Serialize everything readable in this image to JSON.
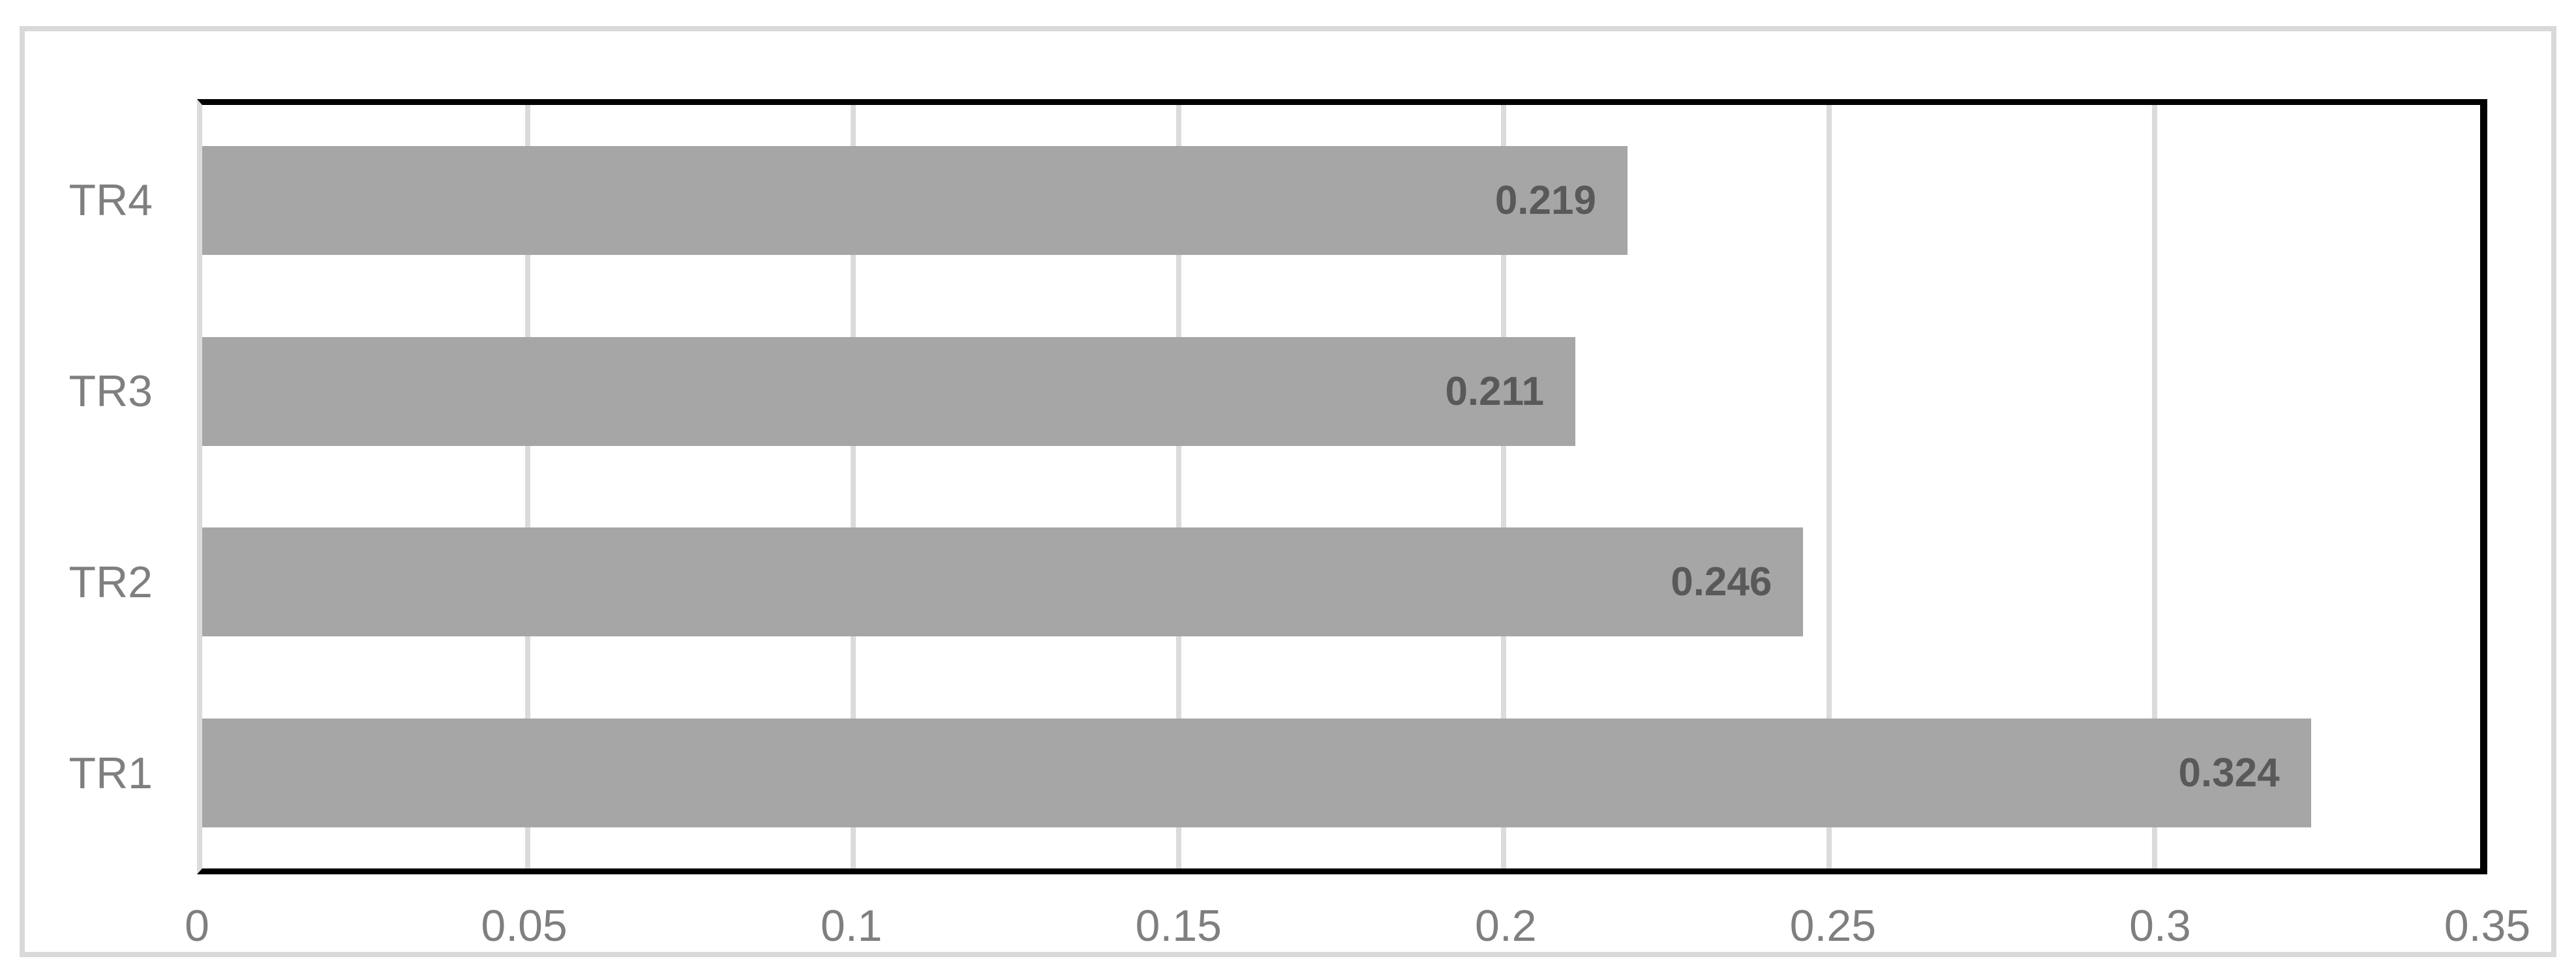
{
  "chart_data": {
    "type": "bar",
    "orientation": "horizontal",
    "title": "",
    "xlabel": "",
    "ylabel": "",
    "categories": [
      "TR1",
      "TR2",
      "TR3",
      "TR4"
    ],
    "values": [
      0.324,
      0.246,
      0.211,
      0.219
    ],
    "rows_top_to_bottom": [
      {
        "category": "TR4",
        "value": 0.219,
        "label": "0.219"
      },
      {
        "category": "TR3",
        "value": 0.211,
        "label": "0.211"
      },
      {
        "category": "TR2",
        "value": 0.246,
        "label": "0.246"
      },
      {
        "category": "TR1",
        "value": 0.324,
        "label": "0.324"
      }
    ],
    "xlim": [
      0,
      0.35
    ],
    "x_ticks": [
      "0",
      "0.05",
      "0.1",
      "0.15",
      "0.2",
      "0.25",
      "0.3",
      "0.35"
    ],
    "grid": true,
    "legend": false,
    "data_labels_position": "inside-end",
    "colors": {
      "bar": "#a6a6a6",
      "data_label": "#595959",
      "axis_label": "#7f7f7f",
      "plot_border": "#000000",
      "gridline": "#dbdbdb",
      "figure_border": "#d9d9d9",
      "background": "#ffffff"
    }
  }
}
